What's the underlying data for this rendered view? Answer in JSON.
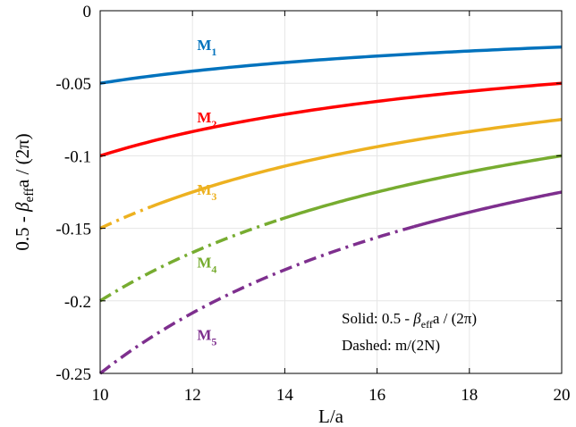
{
  "chart_data": {
    "type": "line",
    "xlabel": "L/a",
    "ylabel": {
      "prefix": "0.5 - ",
      "symbol": "β",
      "subscript": "eff",
      "suffix": "a / (2π)"
    },
    "xlim": [
      10,
      20
    ],
    "ylim": [
      -0.25,
      0
    ],
    "x_ticks": [
      "10",
      "12",
      "14",
      "16",
      "18",
      "20"
    ],
    "x_tick_values": [
      10,
      12,
      14,
      16,
      18,
      20
    ],
    "y_ticks": [
      "0",
      "-0.05",
      "-0.1",
      "-0.15",
      "-0.2",
      "-0.25"
    ],
    "y_tick_values": [
      0,
      -0.05,
      -0.1,
      -0.15,
      -0.2,
      -0.25
    ],
    "grid": true,
    "series": [
      {
        "name": "M1",
        "label_main": "M",
        "label_sub": "1",
        "m": 1,
        "color": "#0072BD",
        "solid_from": 10,
        "label_x": 12.1,
        "label_y": -0.027
      },
      {
        "name": "M2",
        "label_main": "M",
        "label_sub": "2",
        "m": 2,
        "color": "#FF0000",
        "solid_from": 10,
        "label_x": 12.1,
        "label_y": -0.077
      },
      {
        "name": "M3",
        "label_main": "M",
        "label_sub": "3",
        "m": 3,
        "color": "#EDB120",
        "solid_from": 11.1,
        "label_x": 12.1,
        "label_y": -0.127
      },
      {
        "name": "M4",
        "label_main": "M",
        "label_sub": "4",
        "m": 4,
        "color": "#77AC30",
        "solid_from": 13.9,
        "label_x": 12.1,
        "label_y": -0.177
      },
      {
        "name": "M5",
        "label_main": "M",
        "label_sub": "5",
        "m": 5,
        "color": "#7E2F8E",
        "solid_from": 16.8,
        "label_x": 12.1,
        "label_y": -0.227
      }
    ],
    "annotations": [
      {
        "line": 1,
        "prefix": "Solid: 0.5 - ",
        "symbol": "β",
        "subscript": "eff",
        "suffix": "a / (2π)"
      },
      {
        "line": 2,
        "text": "Dashed: m/(2N)"
      }
    ]
  }
}
